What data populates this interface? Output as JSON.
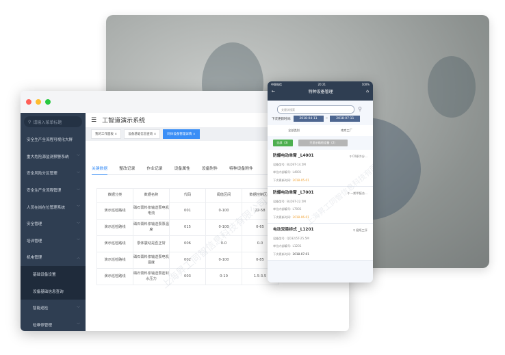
{
  "window": {
    "dots": [
      "#ff5f57",
      "#febc2e",
      "#28c840"
    ]
  },
  "sidebar": {
    "search_placeholder": "请输入菜单标题",
    "items": [
      {
        "label": "安全生产全流程可视化大屏",
        "chevron": false
      },
      {
        "label": "重大危险源监测预警系统",
        "chevron": true
      },
      {
        "label": "安全风险分区管理",
        "chevron": true
      },
      {
        "label": "安全生产全流程管理",
        "chevron": true
      },
      {
        "label": "人员在岗在位管理系统",
        "chevron": true
      },
      {
        "label": "安全管理",
        "chevron": true
      },
      {
        "label": "培训管理",
        "chevron": true
      },
      {
        "label": "机电管理",
        "chevron": true,
        "expanded": true
      }
    ],
    "sub_items": [
      "基础设备设置",
      "设备基础信息查询"
    ],
    "child_items": [
      "智能巡检",
      "检维修管理"
    ]
  },
  "header": {
    "title": "工智道演示系统",
    "menu_icon": "hamburger-icon"
  },
  "tabs": [
    {
      "label": "我的工作面板",
      "active": false
    },
    {
      "label": "设备基础信息查询",
      "active": false
    },
    {
      "label": "同体设备管理详情",
      "active": true
    }
  ],
  "subtabs": [
    "关键数据",
    "整改记录",
    "作业记录",
    "设备属性",
    "设备附件",
    "特种设备附件"
  ],
  "table": {
    "headers": [
      "数据分类",
      "数据名称",
      "代码",
      "阈值区间",
      "数据控制区间"
    ],
    "rows": [
      [
        "演示巡检路线",
        "磷石膏料浆输送泵电机电流",
        "001",
        "0-100",
        "22-58"
      ],
      [
        "演示巡检路线",
        "磷石膏料浆输送泵泵温度",
        "015",
        "0-100",
        "0-65"
      ],
      [
        "演示巡检路线",
        "泵体震动是否正常",
        "006",
        "0-0",
        "0-0"
      ],
      [
        "演示巡检路线",
        "磷石膏料浆输送泵电机温度",
        "002",
        "0-100",
        "0-85"
      ],
      [
        "演示巡检路线",
        "磷石膏料浆输送泵密封水压力",
        "003",
        "0-10",
        "1.5-3.5"
      ]
    ]
  },
  "watermark": "上海昇工同智信息科技有限公司",
  "phone": {
    "carrier": "中国电信",
    "time": "20:21",
    "battery": "100%",
    "title": "特种设备管理",
    "search_placeholder": "关键字搜索",
    "date_label": "下次更新时间:",
    "date_from": "2018-04-11",
    "date_sep": "~",
    "date_to": "2018-07-11",
    "filter_category": "全部类别",
    "filter_factory": "南京工厂",
    "btn_all": "全部（3）",
    "btn_due": "只显示临检设备（2）",
    "accent_green": "#4caf50",
    "cards": [
      {
        "title": "防爆电动单臂 _L4001",
        "location": "C0原冷分...",
        "model_label": "设备型号:",
        "model": "BLDST-14.5M",
        "code_label": "单位内部编号:",
        "code": "L4001",
        "next_label": "下次更新时间:",
        "next": "2018-05-01",
        "due": true
      },
      {
        "title": "防爆电动单臂 _L7001",
        "location": "一期甲醛合...",
        "model_label": "设备型号:",
        "model": "BLDST-22.5M",
        "code_label": "单位内部编号:",
        "code": "L7001",
        "next_label": "下次更新时间:",
        "next": "2018-06-01",
        "due": true
      },
      {
        "title": "电动双梁桥式 _L1201",
        "location": "磨煤工序",
        "model_label": "设备型号:",
        "model": "QD32/5T-25.5M",
        "code_label": "单位内部编号:",
        "code": "L1201",
        "next_label": "下次更新时间:",
        "next": "2018-07-01",
        "due": false
      }
    ]
  }
}
